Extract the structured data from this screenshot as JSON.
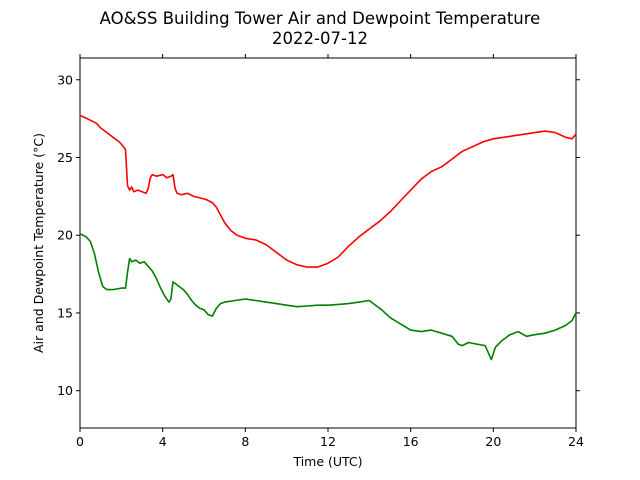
{
  "chart_data": {
    "type": "line",
    "title": "AO&SS Building Tower Air and Dewpoint Temperature",
    "subtitle": "2022-07-12",
    "xlabel": "Time (UTC)",
    "ylabel": "Air and Dewpoint Temperature (°C)",
    "xlim": [
      0,
      24
    ],
    "ylim": [
      7.6,
      31.4
    ],
    "xticks": [
      0,
      4,
      8,
      12,
      16,
      20,
      24
    ],
    "yticks": [
      10,
      15,
      20,
      25,
      30
    ],
    "grid": false,
    "series": [
      {
        "color": "#ff0000",
        "points": [
          [
            0,
            27.7
          ],
          [
            0.2,
            27.6
          ],
          [
            0.5,
            27.4
          ],
          [
            0.8,
            27.2
          ],
          [
            1.0,
            26.9
          ],
          [
            1.3,
            26.6
          ],
          [
            1.6,
            26.3
          ],
          [
            1.9,
            26.0
          ],
          [
            2.1,
            25.7
          ],
          [
            2.2,
            25.5
          ],
          [
            2.3,
            23.2
          ],
          [
            2.4,
            22.9
          ],
          [
            2.5,
            23.1
          ],
          [
            2.6,
            22.8
          ],
          [
            2.8,
            22.9
          ],
          [
            3.0,
            22.8
          ],
          [
            3.2,
            22.7
          ],
          [
            3.3,
            23.0
          ],
          [
            3.4,
            23.7
          ],
          [
            3.5,
            23.9
          ],
          [
            3.7,
            23.8
          ],
          [
            4.0,
            23.9
          ],
          [
            4.2,
            23.7
          ],
          [
            4.4,
            23.8
          ],
          [
            4.5,
            23.9
          ],
          [
            4.6,
            23.0
          ],
          [
            4.7,
            22.7
          ],
          [
            4.9,
            22.6
          ],
          [
            5.2,
            22.7
          ],
          [
            5.5,
            22.5
          ],
          [
            5.8,
            22.4
          ],
          [
            6.1,
            22.3
          ],
          [
            6.4,
            22.1
          ],
          [
            6.6,
            21.8
          ],
          [
            6.8,
            21.3
          ],
          [
            7.0,
            20.8
          ],
          [
            7.3,
            20.3
          ],
          [
            7.6,
            20.0
          ],
          [
            8.0,
            19.8
          ],
          [
            8.5,
            19.7
          ],
          [
            9.0,
            19.4
          ],
          [
            9.5,
            18.9
          ],
          [
            10.0,
            18.4
          ],
          [
            10.5,
            18.1
          ],
          [
            11.0,
            17.95
          ],
          [
            11.5,
            17.95
          ],
          [
            12.0,
            18.2
          ],
          [
            12.5,
            18.6
          ],
          [
            13.0,
            19.3
          ],
          [
            13.5,
            19.9
          ],
          [
            14.0,
            20.4
          ],
          [
            14.5,
            20.9
          ],
          [
            15.0,
            21.5
          ],
          [
            15.5,
            22.2
          ],
          [
            16.0,
            22.9
          ],
          [
            16.5,
            23.6
          ],
          [
            17.0,
            24.1
          ],
          [
            17.5,
            24.4
          ],
          [
            18.0,
            24.9
          ],
          [
            18.5,
            25.4
          ],
          [
            19.0,
            25.7
          ],
          [
            19.5,
            26.0
          ],
          [
            20.0,
            26.2
          ],
          [
            20.5,
            26.3
          ],
          [
            21.0,
            26.4
          ],
          [
            21.5,
            26.5
          ],
          [
            22.0,
            26.6
          ],
          [
            22.5,
            26.7
          ],
          [
            23.0,
            26.6
          ],
          [
            23.5,
            26.3
          ],
          [
            23.8,
            26.2
          ],
          [
            24.0,
            26.5
          ]
        ]
      },
      {
        "color": "#008000",
        "points": [
          [
            0,
            20.1
          ],
          [
            0.3,
            19.9
          ],
          [
            0.5,
            19.6
          ],
          [
            0.7,
            18.8
          ],
          [
            0.9,
            17.6
          ],
          [
            1.1,
            16.7
          ],
          [
            1.3,
            16.5
          ],
          [
            1.6,
            16.5
          ],
          [
            2.0,
            16.6
          ],
          [
            2.2,
            16.6
          ],
          [
            2.3,
            17.6
          ],
          [
            2.4,
            18.5
          ],
          [
            2.5,
            18.3
          ],
          [
            2.7,
            18.4
          ],
          [
            2.9,
            18.2
          ],
          [
            3.1,
            18.3
          ],
          [
            3.3,
            18.0
          ],
          [
            3.5,
            17.7
          ],
          [
            3.7,
            17.2
          ],
          [
            3.9,
            16.6
          ],
          [
            4.1,
            16.1
          ],
          [
            4.3,
            15.7
          ],
          [
            4.4,
            15.9
          ],
          [
            4.5,
            17.0
          ],
          [
            4.6,
            16.9
          ],
          [
            4.8,
            16.7
          ],
          [
            5.0,
            16.5
          ],
          [
            5.2,
            16.2
          ],
          [
            5.4,
            15.8
          ],
          [
            5.6,
            15.5
          ],
          [
            5.8,
            15.3
          ],
          [
            6.0,
            15.2
          ],
          [
            6.2,
            14.9
          ],
          [
            6.4,
            14.8
          ],
          [
            6.6,
            15.3
          ],
          [
            6.8,
            15.6
          ],
          [
            7.0,
            15.7
          ],
          [
            7.5,
            15.8
          ],
          [
            8.0,
            15.9
          ],
          [
            8.5,
            15.8
          ],
          [
            9.0,
            15.7
          ],
          [
            9.5,
            15.6
          ],
          [
            10.0,
            15.5
          ],
          [
            10.5,
            15.4
          ],
          [
            11.0,
            15.45
          ],
          [
            11.5,
            15.5
          ],
          [
            12.0,
            15.5
          ],
          [
            12.5,
            15.55
          ],
          [
            13.0,
            15.6
          ],
          [
            13.5,
            15.7
          ],
          [
            14.0,
            15.8
          ],
          [
            14.3,
            15.5
          ],
          [
            14.6,
            15.2
          ],
          [
            15.0,
            14.7
          ],
          [
            15.5,
            14.3
          ],
          [
            16.0,
            13.9
          ],
          [
            16.5,
            13.8
          ],
          [
            17.0,
            13.9
          ],
          [
            17.5,
            13.7
          ],
          [
            18.0,
            13.5
          ],
          [
            18.3,
            13.0
          ],
          [
            18.5,
            12.9
          ],
          [
            18.8,
            13.1
          ],
          [
            19.2,
            13.0
          ],
          [
            19.6,
            12.9
          ],
          [
            19.9,
            12.0
          ],
          [
            20.1,
            12.8
          ],
          [
            20.4,
            13.2
          ],
          [
            20.8,
            13.6
          ],
          [
            21.2,
            13.8
          ],
          [
            21.6,
            13.5
          ],
          [
            22.0,
            13.6
          ],
          [
            22.5,
            13.7
          ],
          [
            23.0,
            13.9
          ],
          [
            23.5,
            14.2
          ],
          [
            23.8,
            14.5
          ],
          [
            24.0,
            15.0
          ]
        ]
      }
    ]
  }
}
